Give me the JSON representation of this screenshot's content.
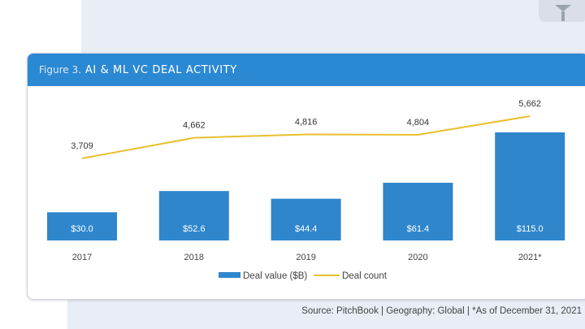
{
  "header": {
    "prefix": "Figure 3.",
    "title": "AI & ML VC DEAL ACTIVITY"
  },
  "source": "Source: PitchBook  |  Geography: Global  |  *As of December 31, 2021",
  "icon": "pin-icon",
  "chart_data": {
    "type": "bar+line",
    "categories": [
      "2017",
      "2018",
      "2019",
      "2020",
      "2021*"
    ],
    "series": [
      {
        "name": "Deal value ($B)",
        "type": "bar",
        "color": "#2f86cb",
        "values": [
          30.0,
          52.6,
          44.4,
          61.4,
          115.0
        ],
        "labels": [
          "$30.0",
          "$52.6",
          "$44.4",
          "$61.4",
          "$115.0"
        ]
      },
      {
        "name": "Deal count",
        "type": "line",
        "color": "#e8bf2c",
        "values": [
          3709,
          4662,
          4816,
          4804,
          5662
        ],
        "labels": [
          "3,709",
          "4,662",
          "4,816",
          "4,804",
          "5,662"
        ]
      }
    ],
    "legend": "bottom",
    "grid": false
  }
}
